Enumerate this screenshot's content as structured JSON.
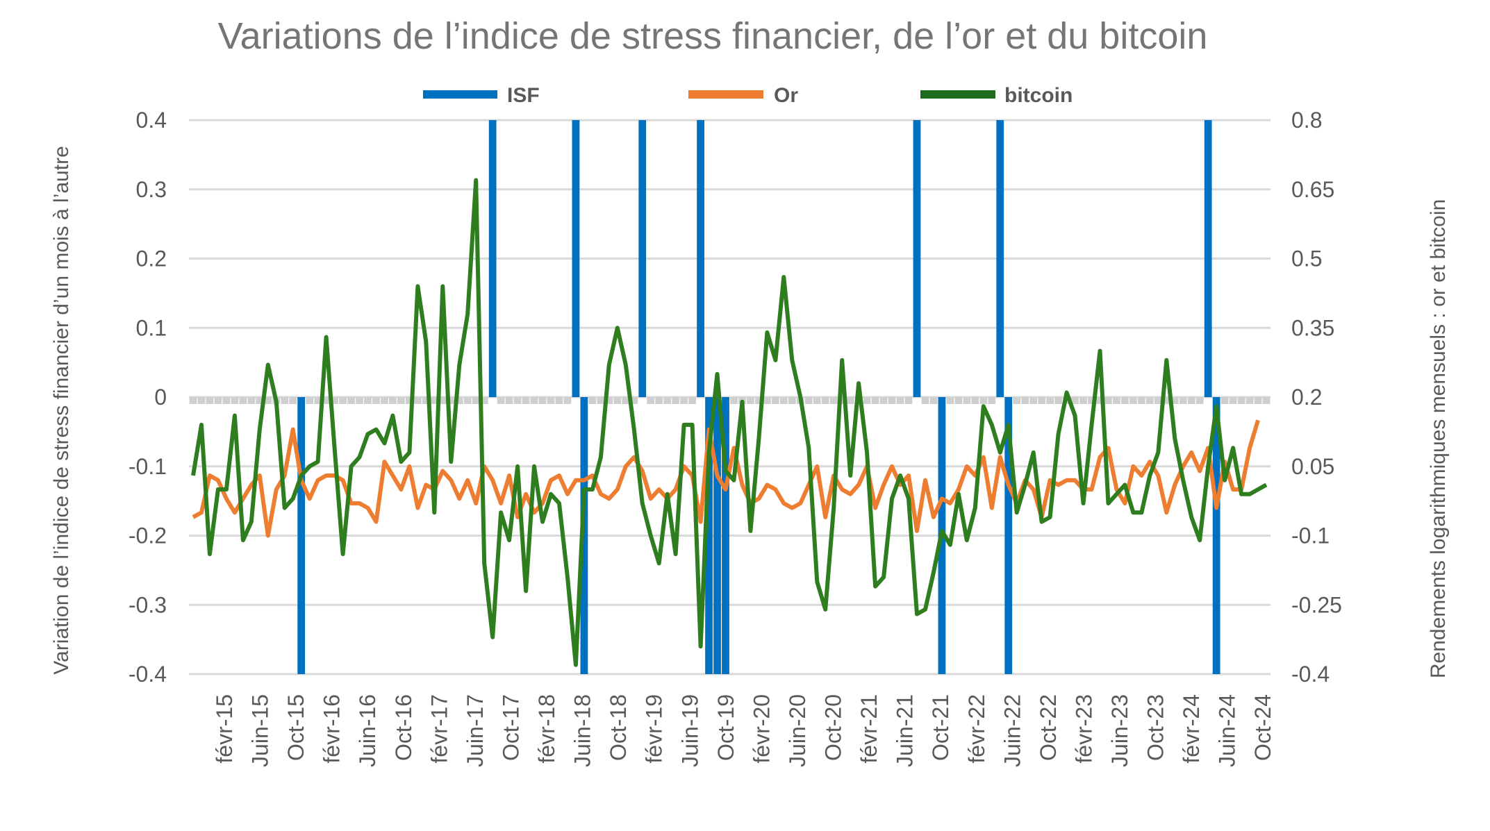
{
  "chart_data": {
    "type": "bar+line",
    "title": "Variations de l’indice de stress financier, de l’or et du bitcoin",
    "ylabel_left": "Variation de l’indice de stress financier d’un mois à l’autre",
    "ylabel_right": "Rendements logarithmiques mensuels : or et bitcoin",
    "ylim_left": [
      -0.4,
      0.4
    ],
    "ylim_right": [
      -0.4,
      0.8
    ],
    "yticks_left": [
      "0.4",
      "0.3",
      "0.2",
      "0.1",
      "0",
      "-0.1",
      "-0.2",
      "-0.3",
      "-0.4"
    ],
    "yticks_right": [
      "0.8",
      "0.65",
      "0.5",
      "0.35",
      "0.2",
      "0.05",
      "-0.1",
      "-0.25",
      "-0.4"
    ],
    "xtick_labels": [
      "févr-15",
      "Juin-15",
      "Oct-15",
      "févr-16",
      "Juin-16",
      "Oct-16",
      "févr-17",
      "Juin-17",
      "Oct-17",
      "févr-18",
      "Juin-18",
      "Oct-18",
      "févr-19",
      "Juin-19",
      "Oct-19",
      "févr-20",
      "Juin-20",
      "Oct-20",
      "févr-21",
      "Juin-21",
      "Oct-21",
      "févr-22",
      "Juin-22",
      "Oct-22",
      "févr-23",
      "Juin-23",
      "Oct-23",
      "févr-24",
      "Juin-24",
      "Oct-24"
    ],
    "grid": true,
    "legend_position": "top",
    "series": [
      {
        "name": "ISF",
        "type": "bar",
        "axis": "left",
        "color": "#0070C0",
        "values": [
          -0.01,
          -0.01,
          -0.01,
          -0.01,
          -0.01,
          -0.01,
          -0.01,
          -0.01,
          -0.01,
          -0.01,
          -0.01,
          -0.01,
          -0.01,
          -0.4,
          -0.01,
          -0.01,
          -0.01,
          -0.01,
          -0.01,
          -0.01,
          -0.01,
          -0.01,
          -0.01,
          -0.01,
          -0.01,
          -0.01,
          -0.01,
          -0.01,
          -0.01,
          -0.01,
          -0.01,
          -0.01,
          -0.01,
          -0.01,
          -0.01,
          -0.01,
          0.4,
          -0.01,
          -0.01,
          -0.01,
          -0.01,
          -0.01,
          -0.01,
          -0.01,
          -0.01,
          -0.01,
          0.4,
          -0.4,
          -0.01,
          -0.01,
          -0.01,
          -0.01,
          -0.01,
          -0.01,
          0.4,
          -0.01,
          -0.01,
          -0.01,
          -0.01,
          -0.01,
          -0.01,
          0.4,
          -0.4,
          -0.4,
          -0.4,
          -0.01,
          -0.01,
          -0.01,
          -0.01,
          -0.01,
          -0.01,
          -0.01,
          -0.01,
          -0.01,
          -0.01,
          -0.01,
          -0.01,
          -0.01,
          -0.01,
          -0.01,
          -0.01,
          -0.01,
          -0.01,
          -0.01,
          -0.01,
          -0.01,
          -0.01,
          0.4,
          -0.01,
          -0.01,
          -0.4,
          -0.01,
          -0.01,
          -0.01,
          -0.01,
          -0.01,
          -0.01,
          0.4,
          -0.4,
          -0.01,
          -0.01,
          -0.01,
          -0.01,
          -0.01,
          -0.01,
          -0.01,
          -0.01,
          -0.01,
          -0.01,
          -0.01,
          -0.01,
          -0.01,
          -0.01,
          -0.01,
          -0.01,
          -0.01,
          -0.01,
          -0.01,
          -0.01,
          -0.01,
          -0.01,
          -0.01,
          0.4,
          -0.4,
          -0.01,
          -0.01,
          -0.01,
          -0.01,
          -0.01,
          -0.01
        ]
      },
      {
        "name": "Or",
        "type": "line",
        "axis": "right",
        "color": "#ED7D31",
        "values": [
          -0.06,
          -0.05,
          0.03,
          0.02,
          -0.02,
          -0.05,
          -0.02,
          0.01,
          0.03,
          -0.1,
          0.0,
          0.03,
          0.13,
          0.02,
          -0.02,
          0.02,
          0.03,
          0.03,
          0.02,
          -0.03,
          -0.03,
          -0.04,
          -0.07,
          0.06,
          0.03,
          0.0,
          0.05,
          -0.04,
          0.01,
          0.0,
          0.04,
          0.02,
          -0.02,
          0.02,
          -0.03,
          0.05,
          0.02,
          -0.03,
          0.03,
          -0.06,
          -0.01,
          -0.05,
          -0.03,
          0.02,
          0.03,
          -0.01,
          0.02,
          0.02,
          0.03,
          -0.01,
          -0.02,
          0.0,
          0.05,
          0.07,
          0.04,
          -0.02,
          0.0,
          -0.02,
          0.0,
          0.05,
          0.03,
          -0.07,
          0.13,
          0.03,
          0.0,
          0.09,
          0.01,
          -0.03,
          -0.02,
          0.01,
          0.0,
          -0.03,
          -0.04,
          -0.03,
          0.01,
          0.05,
          -0.06,
          0.03,
          0.0,
          -0.01,
          0.01,
          0.05,
          -0.04,
          0.01,
          0.05,
          0.01,
          0.03,
          -0.09,
          0.02,
          -0.06,
          -0.02,
          -0.03,
          0.0,
          0.05,
          0.03,
          0.07,
          -0.04,
          0.07,
          0.01,
          -0.03,
          0.02,
          0.0,
          -0.06,
          0.02,
          0.01,
          0.02,
          0.02,
          0.0,
          0.0,
          0.07,
          0.09,
          0.0,
          -0.03,
          0.05,
          0.03,
          0.06,
          0.03,
          -0.05,
          0.01,
          0.05,
          0.08,
          0.04,
          0.09,
          -0.04,
          0.06,
          0.0,
          0.0,
          0.09,
          0.15
        ]
      },
      {
        "name": "bitcoin",
        "type": "line",
        "axis": "right",
        "color": "#2E7D1F",
        "values": [
          0.03,
          0.14,
          -0.14,
          0.0,
          0.0,
          0.16,
          -0.11,
          -0.07,
          0.13,
          0.27,
          0.19,
          -0.04,
          -0.02,
          0.03,
          0.05,
          0.06,
          0.33,
          0.09,
          -0.14,
          0.05,
          0.07,
          0.12,
          0.13,
          0.1,
          0.16,
          0.06,
          0.08,
          0.44,
          0.32,
          -0.05,
          0.44,
          0.06,
          0.27,
          0.38,
          0.67,
          -0.16,
          -0.32,
          -0.05,
          -0.11,
          0.05,
          -0.22,
          0.05,
          -0.07,
          -0.01,
          -0.03,
          -0.19,
          -0.38,
          0.0,
          0.0,
          0.07,
          0.27,
          0.35,
          0.27,
          0.13,
          -0.03,
          -0.1,
          -0.16,
          -0.01,
          -0.14,
          0.14,
          0.14,
          -0.34,
          0.08,
          0.25,
          0.04,
          0.02,
          0.19,
          -0.09,
          0.11,
          0.34,
          0.28,
          0.46,
          0.28,
          0.2,
          0.09,
          -0.2,
          -0.26,
          -0.04,
          0.28,
          0.03,
          0.23,
          0.08,
          -0.21,
          -0.19,
          -0.02,
          0.03,
          -0.02,
          -0.27,
          -0.26,
          -0.18,
          -0.09,
          -0.12,
          -0.01,
          -0.11,
          -0.04,
          0.18,
          0.14,
          0.08,
          0.14,
          -0.05,
          0.01,
          0.08,
          -0.07,
          -0.06,
          0.12,
          0.21,
          0.16,
          -0.03,
          0.14,
          0.3,
          -0.03,
          -0.01,
          0.01,
          -0.05,
          -0.05,
          0.03,
          0.08,
          0.28,
          0.11,
          0.02,
          -0.06,
          -0.11,
          0.05,
          0.18,
          0.02,
          0.09,
          -0.01,
          -0.01,
          0.0,
          0.01
        ]
      }
    ]
  }
}
